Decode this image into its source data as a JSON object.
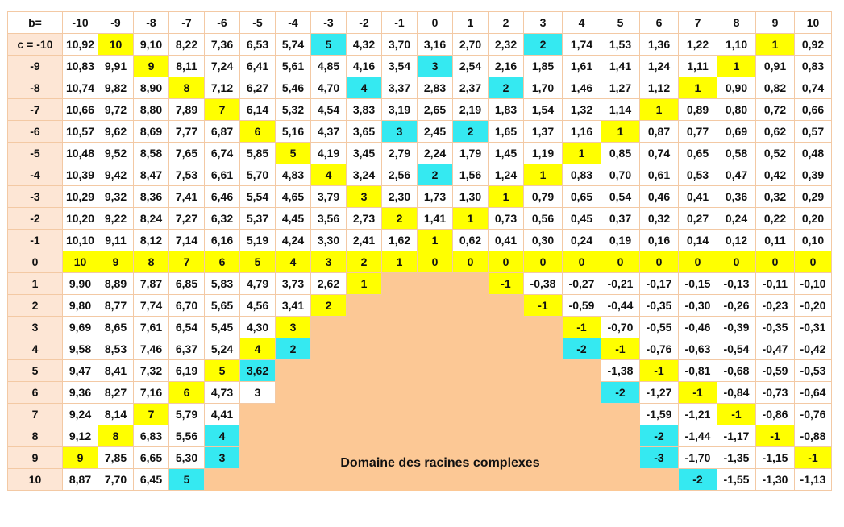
{
  "table": {
    "corner_label": "b=",
    "b_values": [
      "-10",
      "-9",
      "-8",
      "-7",
      "-6",
      "-5",
      "-4",
      "-3",
      "-2",
      "-1",
      "0",
      "1",
      "2",
      "3",
      "4",
      "5",
      "6",
      "7",
      "8",
      "9",
      "10"
    ],
    "row_labels": [
      "c = -10",
      "-9",
      "-8",
      "-7",
      "-6",
      "-5",
      "-4",
      "-3",
      "-2",
      "-1",
      "0",
      "1",
      "2",
      "3",
      "4",
      "5",
      "6",
      "7",
      "8",
      "9",
      "10"
    ],
    "rows": [
      [
        "10,92",
        "10",
        "9,10",
        "8,22",
        "7,36",
        "6,53",
        "5,74",
        "5",
        "4,32",
        "3,70",
        "3,16",
        "2,70",
        "2,32",
        "2",
        "1,74",
        "1,53",
        "1,36",
        "1,22",
        "1,10",
        "1",
        "0,92"
      ],
      [
        "10,83",
        "9,91",
        "9",
        "8,11",
        "7,24",
        "6,41",
        "5,61",
        "4,85",
        "4,16",
        "3,54",
        "3",
        "2,54",
        "2,16",
        "1,85",
        "1,61",
        "1,41",
        "1,24",
        "1,11",
        "1",
        "0,91",
        "0,83"
      ],
      [
        "10,74",
        "9,82",
        "8,90",
        "8",
        "7,12",
        "6,27",
        "5,46",
        "4,70",
        "4",
        "3,37",
        "2,83",
        "2,37",
        "2",
        "1,70",
        "1,46",
        "1,27",
        "1,12",
        "1",
        "0,90",
        "0,82",
        "0,74"
      ],
      [
        "10,66",
        "9,72",
        "8,80",
        "7,89",
        "7",
        "6,14",
        "5,32",
        "4,54",
        "3,83",
        "3,19",
        "2,65",
        "2,19",
        "1,83",
        "1,54",
        "1,32",
        "1,14",
        "1",
        "0,89",
        "0,80",
        "0,72",
        "0,66"
      ],
      [
        "10,57",
        "9,62",
        "8,69",
        "7,77",
        "6,87",
        "6",
        "5,16",
        "4,37",
        "3,65",
        "3",
        "2,45",
        "2",
        "1,65",
        "1,37",
        "1,16",
        "1",
        "0,87",
        "0,77",
        "0,69",
        "0,62",
        "0,57"
      ],
      [
        "10,48",
        "9,52",
        "8,58",
        "7,65",
        "6,74",
        "5,85",
        "5",
        "4,19",
        "3,45",
        "2,79",
        "2,24",
        "1,79",
        "1,45",
        "1,19",
        "1",
        "0,85",
        "0,74",
        "0,65",
        "0,58",
        "0,52",
        "0,48"
      ],
      [
        "10,39",
        "9,42",
        "8,47",
        "7,53",
        "6,61",
        "5,70",
        "4,83",
        "4",
        "3,24",
        "2,56",
        "2",
        "1,56",
        "1,24",
        "1",
        "0,83",
        "0,70",
        "0,61",
        "0,53",
        "0,47",
        "0,42",
        "0,39"
      ],
      [
        "10,29",
        "9,32",
        "8,36",
        "7,41",
        "6,46",
        "5,54",
        "4,65",
        "3,79",
        "3",
        "2,30",
        "1,73",
        "1,30",
        "1",
        "0,79",
        "0,65",
        "0,54",
        "0,46",
        "0,41",
        "0,36",
        "0,32",
        "0,29"
      ],
      [
        "10,20",
        "9,22",
        "8,24",
        "7,27",
        "6,32",
        "5,37",
        "4,45",
        "3,56",
        "2,73",
        "2",
        "1,41",
        "1",
        "0,73",
        "0,56",
        "0,45",
        "0,37",
        "0,32",
        "0,27",
        "0,24",
        "0,22",
        "0,20"
      ],
      [
        "10,10",
        "9,11",
        "8,12",
        "7,14",
        "6,16",
        "5,19",
        "4,24",
        "3,30",
        "2,41",
        "1,62",
        "1",
        "0,62",
        "0,41",
        "0,30",
        "0,24",
        "0,19",
        "0,16",
        "0,14",
        "0,12",
        "0,11",
        "0,10"
      ],
      [
        "10",
        "9",
        "8",
        "7",
        "6",
        "5",
        "4",
        "3",
        "2",
        "1",
        "0",
        "0",
        "0",
        "0",
        "0",
        "0",
        "0",
        "0",
        "0",
        "0",
        "0"
      ],
      [
        "9,90",
        "8,89",
        "7,87",
        "6,85",
        "5,83",
        "4,79",
        "3,73",
        "2,62",
        "1",
        "",
        "",
        "",
        "-1",
        "-0,38",
        "-0,27",
        "-0,21",
        "-0,17",
        "-0,15",
        "-0,13",
        "-0,11",
        "-0,10"
      ],
      [
        "9,80",
        "8,77",
        "7,74",
        "6,70",
        "5,65",
        "4,56",
        "3,41",
        "2",
        "",
        "",
        "",
        "",
        "",
        "-1",
        "-0,59",
        "-0,44",
        "-0,35",
        "-0,30",
        "-0,26",
        "-0,23",
        "-0,20"
      ],
      [
        "9,69",
        "8,65",
        "7,61",
        "6,54",
        "5,45",
        "4,30",
        "3",
        "",
        "",
        "",
        "",
        "",
        "",
        "",
        "-1",
        "-0,70",
        "-0,55",
        "-0,46",
        "-0,39",
        "-0,35",
        "-0,31"
      ],
      [
        "9,58",
        "8,53",
        "7,46",
        "6,37",
        "5,24",
        "4",
        "2",
        "",
        "",
        "",
        "",
        "",
        "",
        "",
        "-2",
        "-1",
        "-0,76",
        "-0,63",
        "-0,54",
        "-0,47",
        "-0,42"
      ],
      [
        "9,47",
        "8,41",
        "7,32",
        "6,19",
        "5",
        "3,62",
        "",
        "",
        "",
        "",
        "",
        "",
        "",
        "",
        "",
        "-1,38",
        "-1",
        "-0,81",
        "-0,68",
        "-0,59",
        "-0,53"
      ],
      [
        "9,36",
        "8,27",
        "7,16",
        "6",
        "4,73",
        "3",
        "",
        "",
        "",
        "",
        "",
        "",
        "",
        "",
        "",
        "-2",
        "-1,27",
        "-1",
        "-0,84",
        "-0,73",
        "-0,64"
      ],
      [
        "9,24",
        "8,14",
        "7",
        "5,79",
        "4,41",
        "",
        "",
        "",
        "",
        "",
        "",
        "",
        "",
        "",
        "",
        "",
        "-1,59",
        "-1,21",
        "-1",
        "-0,86",
        "-0,76"
      ],
      [
        "9,12",
        "8",
        "6,83",
        "5,56",
        "4",
        "",
        "",
        "",
        "",
        "",
        "",
        "",
        "",
        "",
        "",
        "",
        "-2",
        "-1,44",
        "-1,17",
        "-1",
        "-0,88"
      ],
      [
        "9",
        "7,85",
        "6,65",
        "5,30",
        "3",
        "",
        "",
        "",
        "",
        "",
        "",
        "",
        "",
        "",
        "",
        "",
        "-3",
        "-1,70",
        "-1,35",
        "-1,15",
        "-1"
      ],
      [
        "8,87",
        "7,70",
        "6,45",
        "5",
        "",
        "",
        "",
        "",
        "",
        "",
        "",
        "",
        "",
        "",
        "",
        "",
        "",
        "-2",
        "-1,55",
        "-1,30",
        "-1,13"
      ]
    ],
    "highlights": {
      "yellow": [
        [
          0,
          1
        ],
        [
          0,
          19
        ],
        [
          1,
          2
        ],
        [
          1,
          18
        ],
        [
          2,
          3
        ],
        [
          2,
          17
        ],
        [
          3,
          4
        ],
        [
          3,
          16
        ],
        [
          4,
          5
        ],
        [
          4,
          15
        ],
        [
          5,
          6
        ],
        [
          5,
          14
        ],
        [
          6,
          7
        ],
        [
          6,
          13
        ],
        [
          7,
          8
        ],
        [
          7,
          12
        ],
        [
          8,
          9
        ],
        [
          8,
          11
        ],
        [
          9,
          10
        ],
        [
          11,
          8
        ],
        [
          11,
          12
        ],
        [
          12,
          7
        ],
        [
          12,
          13
        ],
        [
          13,
          6
        ],
        [
          13,
          14
        ],
        [
          14,
          5
        ],
        [
          14,
          15
        ],
        [
          15,
          4
        ],
        [
          15,
          16
        ],
        [
          16,
          3
        ],
        [
          16,
          17
        ],
        [
          17,
          2
        ],
        [
          17,
          18
        ],
        [
          18,
          1
        ],
        [
          18,
          19
        ],
        [
          19,
          0
        ],
        [
          19,
          20
        ]
      ],
      "cyan": [
        [
          0,
          7
        ],
        [
          0,
          13
        ],
        [
          1,
          10
        ],
        [
          2,
          8
        ],
        [
          2,
          12
        ],
        [
          4,
          9
        ],
        [
          4,
          11
        ],
        [
          6,
          10
        ],
        [
          14,
          6
        ],
        [
          14,
          14
        ],
        [
          15,
          5
        ],
        [
          16,
          15
        ],
        [
          18,
          4
        ],
        [
          18,
          16
        ],
        [
          19,
          4
        ],
        [
          19,
          16
        ],
        [
          20,
          3
        ],
        [
          20,
          17
        ]
      ]
    },
    "complex_label": "Domaine des racines complexes",
    "colors": {
      "header_bg": "#e9fbfc",
      "row_header_bg": "#fde6d5",
      "yellow": "#ffff00",
      "cyan": "#35e9f1",
      "complex_domain": "#fcc895",
      "border": "#f3c9a4"
    }
  }
}
